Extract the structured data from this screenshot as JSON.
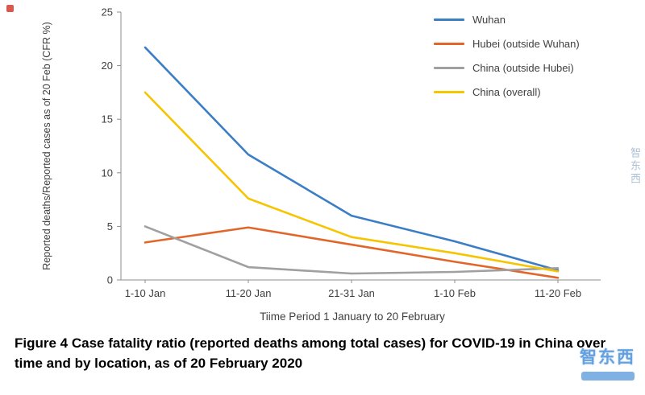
{
  "chart_data": {
    "type": "line",
    "title": "",
    "categories": [
      "1-10 Jan",
      "11-20 Jan",
      "21-31 Jan",
      "1-10 Feb",
      "11-20 Feb"
    ],
    "series": [
      {
        "name": "Wuhan",
        "color": "#3b7ec6",
        "values": [
          21.7,
          11.7,
          6.0,
          3.6,
          0.9
        ]
      },
      {
        "name": "Hubei (outside Wuhan)",
        "color": "#e2662a",
        "values": [
          3.5,
          4.9,
          3.3,
          1.7,
          0.2
        ]
      },
      {
        "name": "China (outside Hubei)",
        "color": "#a0a0a0",
        "values": [
          5.0,
          1.2,
          0.6,
          0.75,
          1.1
        ]
      },
      {
        "name": "China (overall)",
        "color": "#f6c400",
        "values": [
          17.5,
          7.6,
          4.0,
          2.5,
          0.8
        ]
      }
    ],
    "xlabel": "Tiime Period 1 January to 20 February",
    "ylabel": "Reported deaths/Reported  cases as of 20 Feb (CFR %)",
    "ylim": [
      0,
      25
    ],
    "yticks": [
      0,
      5,
      10,
      15,
      20,
      25
    ],
    "grid": false,
    "legend_position": "top-right"
  },
  "caption": "Figure 4 Case fatality ratio (reported deaths among total cases) for COVID-19 in China over time and by location, as of 20 February 2020",
  "watermark": {
    "side_text": "智东西",
    "corner_text": "智东西",
    "color": "#4a90d9"
  }
}
